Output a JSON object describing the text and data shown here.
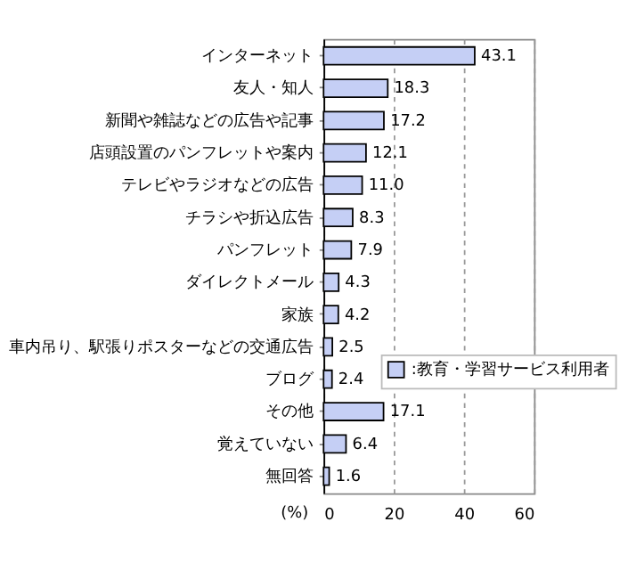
{
  "chart_data": {
    "type": "bar",
    "orientation": "horizontal",
    "categories": [
      "インターネット",
      "友人・知人",
      "新聞や雑誌などの広告や記事",
      "店頭設置のパンフレットや案内",
      "テレビやラジオなどの広告",
      "チラシや折込広告",
      "パンフレット",
      "ダイレクトメール",
      "家族",
      "車内吊り、駅張りポスターなどの交通広告",
      "ブログ",
      "その他",
      "覚えていない",
      "無回答"
    ],
    "series": [
      {
        "name": ":教育・学習サービス利用者",
        "color": "#c5cff5",
        "values": [
          43.1,
          18.3,
          17.2,
          12.1,
          11.0,
          8.3,
          7.9,
          4.3,
          4.2,
          2.5,
          2.4,
          17.1,
          6.4,
          1.6
        ]
      }
    ],
    "xlabel": "(%)",
    "xlim": [
      0,
      60
    ],
    "xticks": [
      0,
      20,
      40,
      60
    ],
    "grid": "x",
    "legend": "bottom right",
    "value_labels": [
      "43.1",
      "18.3",
      "17.2",
      "12.1",
      "11.0",
      "8.3",
      "7.9",
      "4.3",
      "4.2",
      "2.5",
      "2.4",
      "17.1",
      "6.4",
      "1.6"
    ]
  }
}
